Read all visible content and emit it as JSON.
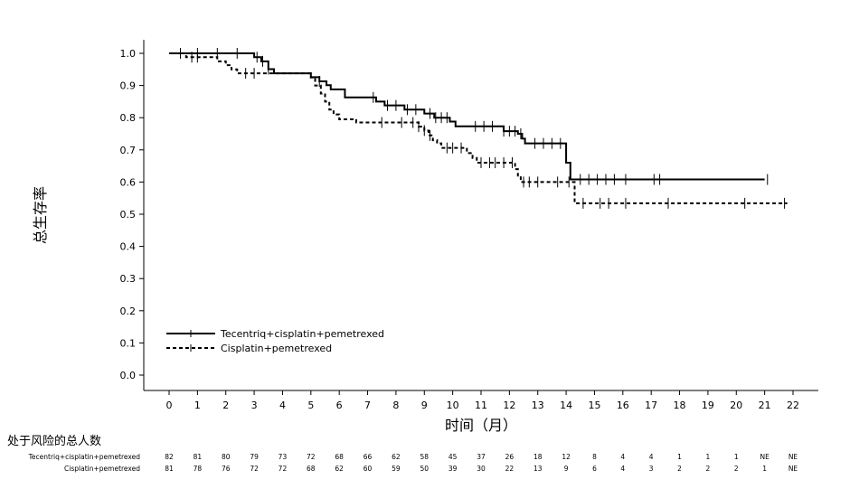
{
  "chart_data": {
    "type": "line",
    "xlabel": "时间（月）",
    "ylabel": "总生存率",
    "xlim": [
      0,
      22
    ],
    "ylim": [
      0,
      1.0
    ],
    "x_ticks": [
      "0",
      "1",
      "2",
      "3",
      "4",
      "5",
      "6",
      "7",
      "8",
      "9",
      "10",
      "11",
      "12",
      "13",
      "14",
      "15",
      "16",
      "17",
      "18",
      "19",
      "20",
      "21",
      "22"
    ],
    "y_ticks": [
      "0.0",
      "0.1",
      "0.2",
      "0.3",
      "0.4",
      "0.5",
      "0.6",
      "0.7",
      "0.8",
      "0.9",
      "1.0"
    ],
    "grid": false,
    "legend_position": "bottom-left",
    "series": [
      {
        "name": "Tecentriq+cisplatin+pemetrexed",
        "style": "solid",
        "steps": [
          [
            0,
            1.0
          ],
          [
            3.0,
            0.988
          ],
          [
            3.25,
            0.975
          ],
          [
            3.5,
            0.951
          ],
          [
            3.7,
            0.938
          ],
          [
            5.0,
            0.926
          ],
          [
            5.3,
            0.913
          ],
          [
            5.55,
            0.901
          ],
          [
            5.7,
            0.888
          ],
          [
            6.2,
            0.863
          ],
          [
            7.3,
            0.85
          ],
          [
            7.6,
            0.838
          ],
          [
            8.3,
            0.825
          ],
          [
            9.0,
            0.813
          ],
          [
            9.35,
            0.8
          ],
          [
            9.9,
            0.788
          ],
          [
            10.1,
            0.773
          ],
          [
            11.8,
            0.758
          ],
          [
            12.3,
            0.75
          ],
          [
            12.45,
            0.735
          ],
          [
            12.55,
            0.72
          ],
          [
            14.0,
            0.66
          ],
          [
            14.15,
            0.608
          ],
          [
            21.0,
            0.608
          ]
        ],
        "censor_x": [
          0.4,
          1.0,
          1.7,
          2.4,
          3.1,
          3.3,
          3.5,
          5.3,
          7.2,
          7.7,
          8.0,
          8.4,
          8.7,
          9.2,
          9.4,
          9.6,
          9.8,
          10.8,
          11.1,
          11.4,
          11.8,
          12.0,
          12.2,
          12.4,
          12.9,
          13.2,
          13.5,
          13.8,
          14.5,
          14.8,
          15.1,
          15.4,
          15.7,
          16.1,
          17.1,
          17.3,
          21.1
        ]
      },
      {
        "name": "Cisplatin+pemetrexed",
        "style": "dashed",
        "steps": [
          [
            0,
            1.0
          ],
          [
            0.6,
            0.988
          ],
          [
            1.7,
            0.975
          ],
          [
            2.0,
            0.963
          ],
          [
            2.2,
            0.95
          ],
          [
            2.4,
            0.938
          ],
          [
            5.0,
            0.925
          ],
          [
            5.15,
            0.9
          ],
          [
            5.35,
            0.875
          ],
          [
            5.5,
            0.85
          ],
          [
            5.65,
            0.825
          ],
          [
            5.8,
            0.81
          ],
          [
            6.0,
            0.795
          ],
          [
            6.6,
            0.785
          ],
          [
            8.8,
            0.772
          ],
          [
            9.0,
            0.76
          ],
          [
            9.15,
            0.745
          ],
          [
            9.3,
            0.73
          ],
          [
            9.45,
            0.72
          ],
          [
            9.6,
            0.706
          ],
          [
            10.5,
            0.69
          ],
          [
            10.7,
            0.675
          ],
          [
            10.85,
            0.66
          ],
          [
            12.2,
            0.64
          ],
          [
            12.3,
            0.62
          ],
          [
            12.4,
            0.6
          ],
          [
            14.3,
            0.534
          ],
          [
            21.8,
            0.534
          ]
        ],
        "censor_x": [
          0.8,
          1.0,
          2.7,
          3.0,
          7.5,
          8.2,
          8.6,
          8.8,
          9.0,
          9.2,
          9.8,
          10.0,
          10.3,
          11.0,
          11.3,
          11.5,
          11.8,
          12.1,
          12.5,
          12.7,
          13.0,
          13.7,
          14.1,
          14.6,
          15.2,
          15.5,
          16.1,
          17.6,
          20.3,
          21.7
        ]
      }
    ]
  },
  "risk_table": {
    "title": "处于风险的总人数",
    "rows": [
      {
        "label": "Tecentriq+cisplatin+pemetrexed",
        "values": [
          "82",
          "81",
          "80",
          "79",
          "73",
          "72",
          "68",
          "66",
          "62",
          "58",
          "45",
          "37",
          "26",
          "18",
          "12",
          "8",
          "4",
          "4",
          "1",
          "1",
          "1",
          "NE",
          "NE"
        ]
      },
      {
        "label": "Cisplatin+pemetrexed",
        "values": [
          "81",
          "78",
          "76",
          "72",
          "72",
          "68",
          "62",
          "60",
          "59",
          "50",
          "39",
          "30",
          "22",
          "13",
          "9",
          "6",
          "4",
          "3",
          "2",
          "2",
          "2",
          "1",
          "NE"
        ]
      }
    ]
  }
}
